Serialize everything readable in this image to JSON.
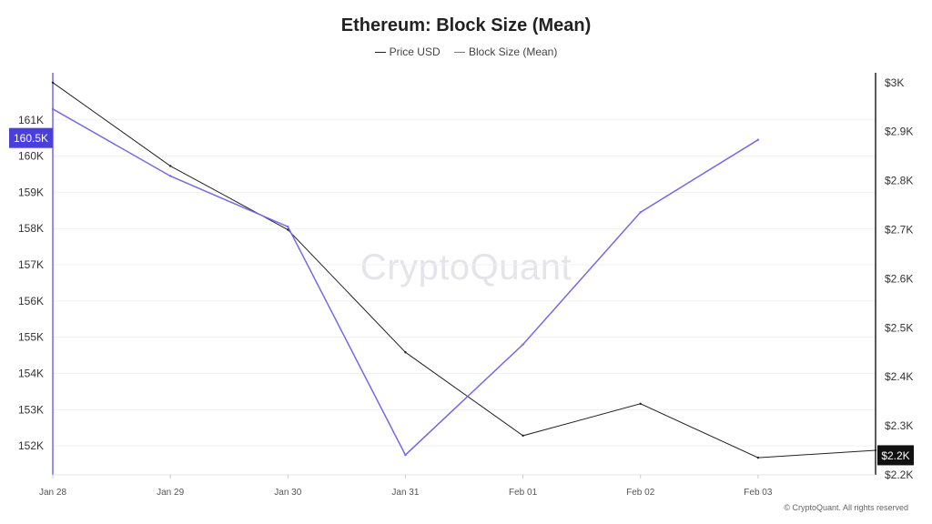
{
  "chart_data": {
    "type": "line",
    "title": "Ethereum: Block Size (Mean)",
    "legend": [
      "Price USD",
      "Block Size (Mean)"
    ],
    "legend_position": "top-center",
    "categories": [
      "Jan 28",
      "Jan 29",
      "Jan 30",
      "Jan 31",
      "Feb 01",
      "Feb 02",
      "Feb 03",
      ""
    ],
    "left_axis": {
      "ticks": [
        "161K",
        "160K",
        "159K",
        "158K",
        "157K",
        "156K",
        "155K",
        "154K",
        "153K",
        "152K"
      ],
      "tick_values": [
        161000,
        160000,
        159000,
        158000,
        157000,
        156000,
        155000,
        154000,
        153000,
        152000
      ],
      "ylim": [
        151200,
        162300
      ],
      "highlight_label": "160.5K",
      "highlight_value": 160500
    },
    "right_axis": {
      "ticks": [
        "$3K",
        "$2.9K",
        "$2.8K",
        "$2.7K",
        "$2.6K",
        "$2.5K",
        "$2.4K",
        "$2.3K",
        "$2.2K"
      ],
      "tick_values": [
        3000,
        2900,
        2800,
        2700,
        2600,
        2500,
        2400,
        2300,
        2200
      ],
      "ylim": [
        2200,
        3020
      ],
      "highlight_label": "$2.2K",
      "highlight_value": 2240
    },
    "series": [
      {
        "name": "Price USD",
        "axis": "right",
        "color": "#222222",
        "values": [
          3000,
          2830,
          2700,
          2450,
          2280,
          2345,
          2235,
          2250
        ]
      },
      {
        "name": "Block Size (Mean)",
        "axis": "left",
        "color": "#7468ee",
        "values": [
          161300,
          159450,
          158050,
          151750,
          154800,
          158450,
          160450,
          null
        ]
      }
    ],
    "grid": true,
    "watermark": "CryptoQuant",
    "copyright": "© CryptoQuant. All rights reserved"
  }
}
